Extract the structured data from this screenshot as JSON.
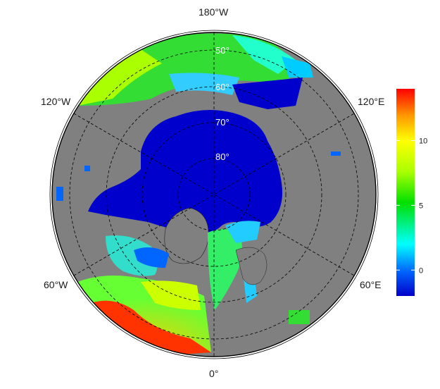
{
  "map": {
    "longitude_labels": [
      "180°W",
      "120°W",
      "120°E",
      "60°W",
      "60°E",
      "0°"
    ],
    "latitude_labels": [
      "50°",
      "60°",
      "70°",
      "80°"
    ]
  },
  "colorbar": {
    "ticks": [
      "0",
      "5",
      "10"
    ],
    "tick_values": [
      0,
      5,
      10
    ],
    "range": [
      -2,
      14
    ],
    "colors": [
      "#0000c8",
      "#0066ff",
      "#00ffff",
      "#00e000",
      "#aaff00",
      "#ffff00",
      "#ff9900",
      "#ff0000"
    ]
  },
  "palette": {
    "land": "#808080",
    "ice": "#0000cc",
    "ocean_warm": "#ff3300",
    "ocean_mid": "#66ff33",
    "ocean_cold": "#33ccff"
  }
}
